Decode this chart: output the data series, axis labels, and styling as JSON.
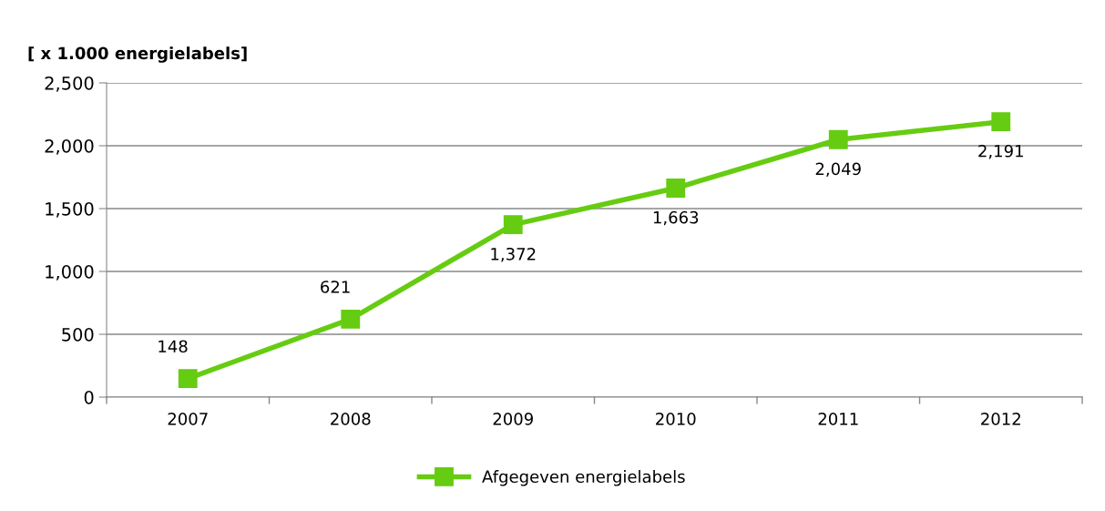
{
  "chart_data": {
    "type": "line",
    "ylabel": "[ x 1.000 energielabels]",
    "categories": [
      "2007",
      "2008",
      "2009",
      "2010",
      "2011",
      "2012"
    ],
    "series": [
      {
        "name": "Afgegeven energielabels",
        "color": "#66cc11",
        "values": [
          148,
          621,
          1372,
          1663,
          2049,
          2191
        ]
      }
    ],
    "ylim": [
      0,
      2500
    ],
    "yticks": [
      0,
      {
        "value": 500,
        "label": "500"
      },
      {
        "value": 1000,
        "label": "1,000"
      },
      {
        "value": 1500,
        "label": "1,500"
      },
      {
        "value": 2000,
        "label": "2,000"
      },
      {
        "value": 2500,
        "label": "2,500"
      }
    ],
    "value_labels": [
      "148",
      "621",
      "1,372",
      "1,663",
      "2,049",
      "2,191"
    ],
    "grid": "y",
    "legend": "bottom",
    "marker": "square",
    "line_style": "solid"
  }
}
